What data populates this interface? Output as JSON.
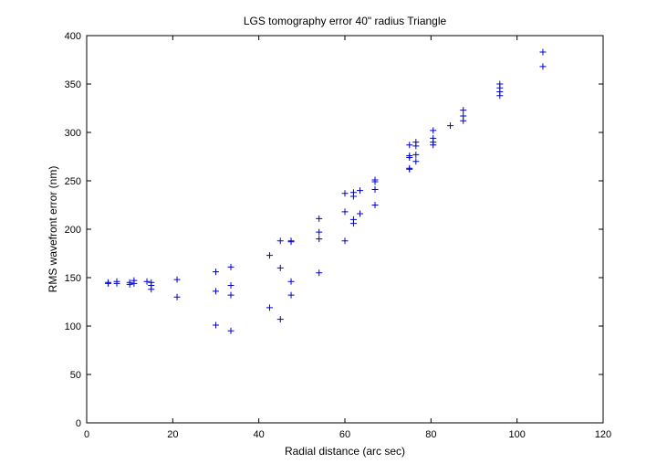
{
  "chart_data": {
    "type": "scatter",
    "title": "LGS tomography error 40\" radius Triangle",
    "xlabel": "Radial distance (arc sec)",
    "ylabel": "RMS wavefront error (nm)",
    "xlim": [
      0,
      120
    ],
    "ylim": [
      0,
      400
    ],
    "xticks": [
      0,
      20,
      40,
      60,
      80,
      100,
      120
    ],
    "yticks": [
      0,
      50,
      100,
      150,
      200,
      250,
      300,
      350,
      400
    ],
    "grid": false,
    "marker": "+",
    "color": "#0000cc",
    "series": [
      {
        "points": [
          [
            5,
            145
          ],
          [
            5,
            144
          ],
          [
            7,
            146
          ],
          [
            7,
            144
          ],
          [
            10,
            145
          ],
          [
            10,
            143
          ],
          [
            11,
            147
          ],
          [
            11,
            144
          ],
          [
            14,
            146
          ],
          [
            15,
            145
          ],
          [
            15,
            142
          ],
          [
            15,
            138
          ],
          [
            21,
            148
          ],
          [
            21,
            130
          ],
          [
            30,
            156
          ],
          [
            30,
            136
          ],
          [
            30,
            101
          ],
          [
            33.5,
            161
          ],
          [
            33.5,
            142
          ],
          [
            33.5,
            132
          ],
          [
            33.5,
            95
          ],
          [
            42.5,
            173
          ],
          [
            42.5,
            119
          ],
          [
            45,
            188
          ],
          [
            45,
            160
          ],
          [
            45,
            107
          ],
          [
            47.5,
            188
          ],
          [
            47.5,
            187
          ],
          [
            47.5,
            146
          ],
          [
            47.5,
            132
          ],
          [
            54,
            211
          ],
          [
            54,
            197
          ],
          [
            54,
            190
          ],
          [
            54,
            155
          ],
          [
            60,
            237
          ],
          [
            60,
            218
          ],
          [
            60,
            188
          ],
          [
            62,
            238
          ],
          [
            62,
            234
          ],
          [
            62,
            210
          ],
          [
            62,
            206
          ],
          [
            63.5,
            240
          ],
          [
            63.5,
            216
          ],
          [
            67,
            251
          ],
          [
            67,
            249
          ],
          [
            67,
            241
          ],
          [
            67,
            225
          ],
          [
            75,
            287
          ],
          [
            75,
            276
          ],
          [
            75,
            274
          ],
          [
            75,
            263
          ],
          [
            75,
            262
          ],
          [
            76.5,
            290
          ],
          [
            76.5,
            286
          ],
          [
            76.5,
            277
          ],
          [
            76.5,
            270
          ],
          [
            80.5,
            302
          ],
          [
            80.5,
            294
          ],
          [
            80.5,
            290
          ],
          [
            80.5,
            287
          ],
          [
            84.5,
            307
          ],
          [
            87.5,
            323
          ],
          [
            87.5,
            317
          ],
          [
            87.5,
            312
          ],
          [
            96,
            350
          ],
          [
            96,
            346
          ],
          [
            96,
            342
          ],
          [
            96,
            338
          ],
          [
            106,
            383
          ],
          [
            106,
            368
          ]
        ]
      }
    ]
  }
}
